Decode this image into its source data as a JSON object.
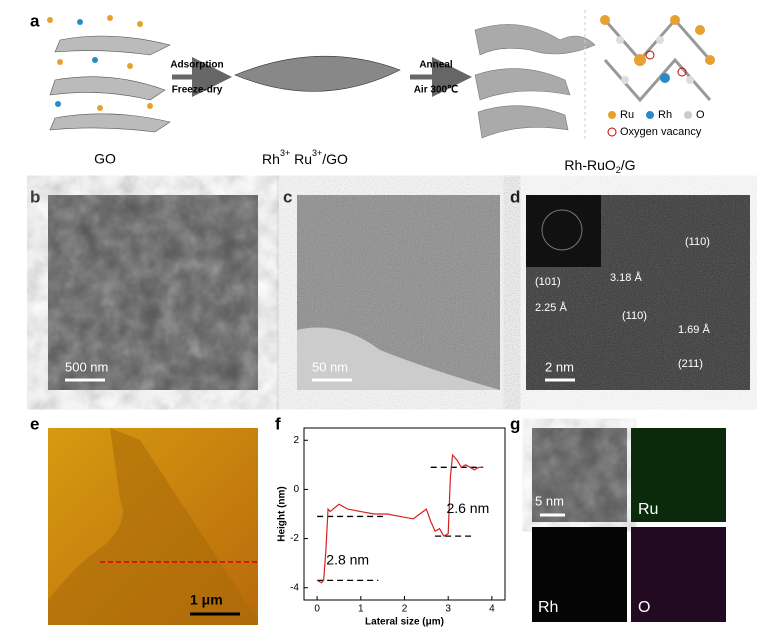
{
  "panels": {
    "a": {
      "letter": "a",
      "step1": [
        "Adsorption",
        "Freeze-dry"
      ],
      "step2": [
        "Anneal",
        "Air 300℃"
      ],
      "label_go": "GO",
      "label_mid": [
        "Rh",
        "3+",
        " Ru",
        "3+",
        "/GO"
      ],
      "label_final": [
        "Rh-RuO",
        "2",
        "/G"
      ],
      "legend": [
        "Ru",
        "Rh",
        "O",
        "Oxygen vacancy"
      ]
    },
    "b": {
      "letter": "b",
      "scale": "500 nm"
    },
    "c": {
      "letter": "c",
      "scale": "50 nm"
    },
    "d": {
      "letter": "d",
      "scale": "2 nm",
      "labels": [
        "(110)",
        "3.18 Å",
        "(101)",
        "2.25 Å",
        "(110)",
        "1.69 Å",
        "(211)"
      ]
    },
    "e": {
      "letter": "e",
      "scale": "1 μm"
    },
    "f": {
      "letter": "f"
    },
    "g": {
      "letter": "g",
      "scale": "5 nm",
      "labels": [
        "Ru",
        "Rh",
        "O"
      ]
    }
  },
  "chart_data": {
    "type": "line",
    "x_label": "Lateral size (μm)",
    "y_label": "Height (nm)",
    "xlim": [
      -0.3,
      4.3
    ],
    "ylim": [
      -4.5,
      2.5
    ],
    "xticks": [
      0,
      1,
      2,
      3,
      4
    ],
    "yticks": [
      -4,
      -2,
      0,
      2
    ],
    "series": [
      {
        "color": "#d62020",
        "x": [
          0,
          0.1,
          0.15,
          0.2,
          0.25,
          0.3,
          0.5,
          0.7,
          1.0,
          1.3,
          1.6,
          1.9,
          2.2,
          2.5,
          2.6,
          2.7,
          2.8,
          2.9,
          3.0,
          3.05,
          3.1,
          3.2,
          3.3,
          3.4,
          3.5,
          3.6,
          3.7,
          3.8
        ],
        "values": [
          -3.7,
          -3.8,
          -3.7,
          -2.5,
          -0.8,
          -0.9,
          -0.6,
          -0.8,
          -0.9,
          -1.0,
          -1.0,
          -1.1,
          -1.2,
          -0.8,
          -1.3,
          -1.7,
          -1.6,
          -1.9,
          -1.8,
          0.5,
          1.4,
          1.2,
          0.9,
          1.0,
          0.9,
          0.8,
          0.9,
          0.9
        ]
      }
    ],
    "reference_lines": [
      {
        "y": -3.7,
        "x": [
          0,
          1.4
        ]
      },
      {
        "y": -1.1,
        "x": [
          0,
          1.6
        ]
      },
      {
        "y": -1.9,
        "x": [
          2.7,
          3.6
        ]
      },
      {
        "y": 0.9,
        "x": [
          2.6,
          3.8
        ]
      }
    ],
    "annotations": [
      {
        "text": "2.8 nm",
        "x": 0.7,
        "y": -2.9
      },
      {
        "text": "2.6 nm",
        "x": 3.45,
        "y": -0.8
      }
    ]
  }
}
